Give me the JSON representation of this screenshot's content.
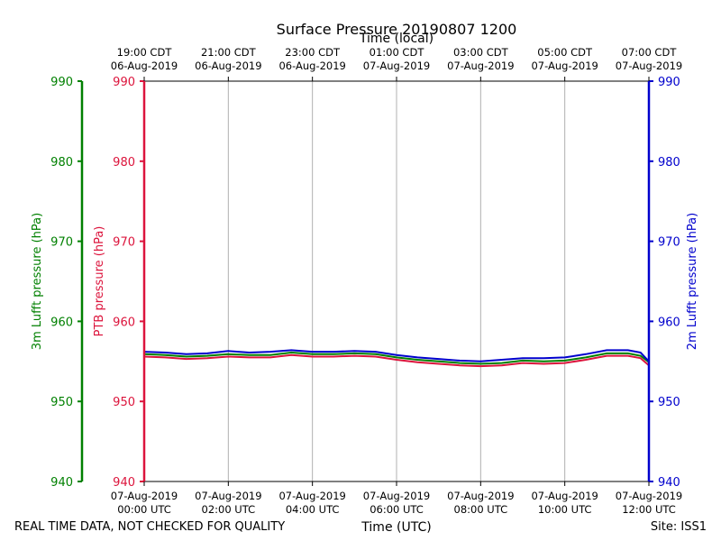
{
  "chart_data": {
    "type": "line",
    "title": "Surface Pressure 20190807 1200",
    "top_axis_label": "Time (local)",
    "bottom_axis_label": "Time (UTC)",
    "left_outer_axis_label": "3m Lufft pressure (hPa)",
    "left_inner_axis_label": "PTB pressure (hPa)",
    "right_axis_label": "2m Lufft pressure (hPa)",
    "ylim": [
      940,
      990
    ],
    "yticks": [
      940,
      950,
      960,
      970,
      980,
      990
    ],
    "xlim": [
      0,
      12
    ],
    "x_ticks": [
      {
        "h": 0,
        "utc_date": "07-Aug-2019",
        "utc_time": "00:00 UTC",
        "local_time": "19:00 CDT",
        "local_date": "06-Aug-2019"
      },
      {
        "h": 2,
        "utc_date": "07-Aug-2019",
        "utc_time": "02:00 UTC",
        "local_time": "21:00 CDT",
        "local_date": "06-Aug-2019"
      },
      {
        "h": 4,
        "utc_date": "07-Aug-2019",
        "utc_time": "04:00 UTC",
        "local_time": "23:00 CDT",
        "local_date": "06-Aug-2019"
      },
      {
        "h": 6,
        "utc_date": "07-Aug-2019",
        "utc_time": "06:00 UTC",
        "local_time": "01:00 CDT",
        "local_date": "07-Aug-2019"
      },
      {
        "h": 8,
        "utc_date": "07-Aug-2019",
        "utc_time": "08:00 UTC",
        "local_time": "03:00 CDT",
        "local_date": "07-Aug-2019"
      },
      {
        "h": 10,
        "utc_date": "07-Aug-2019",
        "utc_time": "10:00 UTC",
        "local_time": "05:00 CDT",
        "local_date": "07-Aug-2019"
      },
      {
        "h": 12,
        "utc_date": "07-Aug-2019",
        "utc_time": "12:00 UTC",
        "local_time": "07:00 CDT",
        "local_date": "07-Aug-2019"
      }
    ],
    "grid": true,
    "series": [
      {
        "name": "3m Lufft pressure",
        "color": "#008000",
        "x": [
          0,
          0.5,
          1,
          1.5,
          2,
          2.5,
          3,
          3.5,
          4,
          4.5,
          5,
          5.5,
          6,
          6.5,
          7,
          7.5,
          8,
          8.5,
          9,
          9.5,
          10,
          10.5,
          11,
          11.5,
          11.8,
          12
        ],
        "y": [
          955.9,
          955.8,
          955.6,
          955.7,
          955.9,
          955.8,
          955.8,
          956.1,
          955.9,
          955.9,
          956.0,
          955.9,
          955.5,
          955.2,
          955.0,
          954.8,
          954.7,
          954.8,
          955.1,
          955.0,
          955.1,
          955.5,
          956.0,
          956.0,
          955.7,
          954.9
        ]
      },
      {
        "name": "PTB pressure",
        "color": "#dc143c",
        "x": [
          0,
          0.5,
          1,
          1.5,
          2,
          2.5,
          3,
          3.5,
          4,
          4.5,
          5,
          5.5,
          6,
          6.5,
          7,
          7.5,
          8,
          8.5,
          9,
          9.5,
          10,
          10.5,
          11,
          11.5,
          11.8,
          12
        ],
        "y": [
          955.6,
          955.5,
          955.3,
          955.4,
          955.6,
          955.5,
          955.5,
          955.8,
          955.6,
          955.6,
          955.7,
          955.6,
          955.2,
          954.9,
          954.7,
          954.5,
          954.4,
          954.5,
          954.8,
          954.7,
          954.8,
          955.2,
          955.7,
          955.7,
          955.4,
          954.5
        ]
      },
      {
        "name": "2m Lufft pressure",
        "color": "#0000cd",
        "x": [
          0,
          0.5,
          1,
          1.5,
          2,
          2.5,
          3,
          3.5,
          4,
          4.5,
          5,
          5.5,
          6,
          6.5,
          7,
          7.5,
          8,
          8.5,
          9,
          9.5,
          10,
          10.5,
          11,
          11.5,
          11.8,
          12
        ],
        "y": [
          956.2,
          956.1,
          955.9,
          956.0,
          956.3,
          956.1,
          956.2,
          956.4,
          956.2,
          956.2,
          956.3,
          956.2,
          955.8,
          955.5,
          955.3,
          955.1,
          955.0,
          955.2,
          955.4,
          955.4,
          955.5,
          955.9,
          956.4,
          956.4,
          956.1,
          955.0
        ]
      }
    ],
    "footer_left": "REAL TIME DATA, NOT CHECKED FOR QUALITY",
    "footer_right": "Site: ISS1",
    "colors": {
      "left_outer": "#008000",
      "left_inner": "#dc143c",
      "right": "#0000cd",
      "grid": "#b0b0b0"
    }
  }
}
